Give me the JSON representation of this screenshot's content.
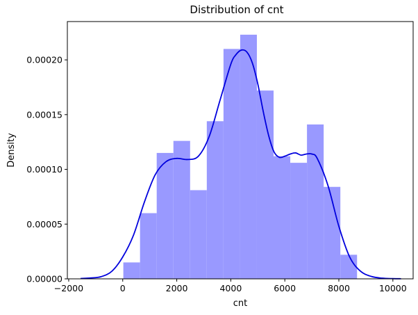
{
  "chart_data": {
    "type": "bar",
    "title": "Distribution of cnt",
    "xlabel": "cnt",
    "ylabel": "Density",
    "xlim": [
      -2050,
      10750
    ],
    "ylim": [
      0,
      0.000235
    ],
    "xticks": [
      -2000,
      0,
      2000,
      4000,
      6000,
      8000,
      10000
    ],
    "yticks": [
      0,
      5e-05,
      0.0001,
      0.00015,
      0.0002
    ],
    "xtick_labels": [
      "−2000",
      "0",
      "2000",
      "4000",
      "6000",
      "8000",
      "10000"
    ],
    "ytick_labels": [
      "0.00000",
      "0.00005",
      "0.00010",
      "0.00015",
      "0.00020"
    ],
    "grid": false,
    "histogram": {
      "color": "#9999ff",
      "bin_edges": [
        22,
        640,
        1258,
        1876,
        2494,
        3112,
        3730,
        4348,
        4966,
        5584,
        6202,
        6820,
        7438,
        8056,
        8674
      ],
      "values": [
        1.5e-05,
        6e-05,
        0.000115,
        0.000126,
        8.1e-05,
        0.000144,
        0.00021,
        0.000223,
        0.000172,
        0.000112,
        0.000106,
        0.000141,
        8.4e-05,
        2.2e-05
      ]
    },
    "kde": {
      "color": "#0000dd",
      "x": [
        -1560,
        -1200,
        -800,
        -400,
        0,
        400,
        800,
        1200,
        1600,
        2000,
        2400,
        2800,
        3200,
        3600,
        4000,
        4200,
        4400,
        4600,
        4800,
        5000,
        5200,
        5400,
        5600,
        5800,
        6000,
        6200,
        6400,
        6600,
        6800,
        7000,
        7200,
        7600,
        8000,
        8400,
        8800,
        9200,
        9600,
        10000,
        10300
      ],
      "y": [
        3e-07,
        8e-07,
        2e-06,
        7e-06,
        2e-05,
        4e-05,
        7e-05,
        9.5e-05,
        0.000107,
        0.00011,
        0.000109,
        0.000112,
        0.00013,
        0.000163,
        0.000196,
        0.000205,
        0.000209,
        0.000207,
        0.000197,
        0.000178,
        0.000153,
        0.000131,
        0.000116,
        0.000111,
        0.000112,
        0.000114,
        0.000115,
        0.000113,
        0.000114,
        0.000114,
        0.00011,
        8.5e-05,
        4.8e-05,
        2e-05,
        7e-06,
        2.2e-06,
        6e-07,
        2e-07,
        1e-07
      ]
    }
  }
}
